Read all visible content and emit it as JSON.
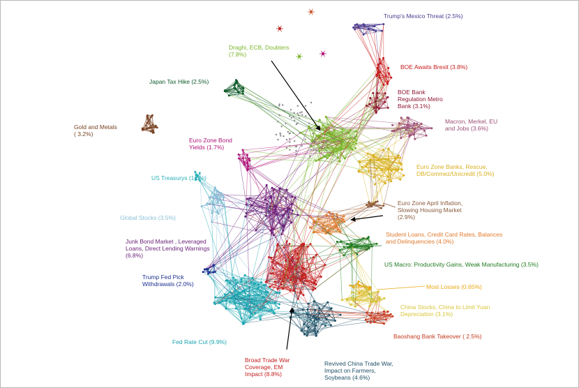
{
  "clusters": [
    {
      "id": "trump-mexico",
      "label": "Trump's Mexico Threat  (2.5%)",
      "color": "#4b3b8f"
    },
    {
      "id": "boe-brexit",
      "label": "BOE Awaits Brexit  (3.8%)",
      "color": "#c91b1b"
    },
    {
      "id": "boe-metro",
      "label": "BOE Bank\nRegulation Metro\nBank  (3.1%)",
      "color": "#8f1834"
    },
    {
      "id": "macron",
      "label": "Macron, Merkel, EU\nand Jobs  (3.6%)",
      "color": "#9b4f74"
    },
    {
      "id": "ez-banks",
      "label": "Euro Zone Banks, Rescue,\nDB/Commez/Unicredit  (5.0%)",
      "color": "#d9b01d"
    },
    {
      "id": "ez-inflation",
      "label": "Euro Zone April Inflation,\nSlowing Housing Market\n(2.9%)",
      "color": "#8a5a3c"
    },
    {
      "id": "student-loans",
      "label": "Student Loans, Credit Card Rates, Balances\nand Delinquencies  (4.0%)",
      "color": "#e07a2c"
    },
    {
      "id": "us-macro",
      "label": "US Macro: Productivity Gains, Weak Manufacturing  (3.5%)",
      "color": "#1f7a1f"
    },
    {
      "id": "most-losses",
      "label": "Most Losses  (0.65%)",
      "color": "#e8a716"
    },
    {
      "id": "china-stocks",
      "label": "China Stocks, China to Limit Yuan\nDepreciation  (3.1%)",
      "color": "#d8c63a"
    },
    {
      "id": "baoshang",
      "label": "Baoshang Bank Takeover  ( 2.5%)",
      "color": "#c4381c"
    },
    {
      "id": "revived-china",
      "label": "Revived China Trade War,\nImpact on Farmers,\nSoybeans  (4.6%)",
      "color": "#1d4f66"
    },
    {
      "id": "broad-trade",
      "label": "Broad Trade  War\nCoverage, EM\nImpact  (8.8%)",
      "color": "#c42020"
    },
    {
      "id": "fed-cut",
      "label": "Fed Rate Cut  (9.9%)",
      "color": "#1aa6b0"
    },
    {
      "id": "trump-fed",
      "label": "Trump Fed Pick\nWithdrawals  (2.0%)",
      "color": "#1b2f8f"
    },
    {
      "id": "junk-bond",
      "label": "Junk Bond Market , Leveraged\nLoans, Direct Lending Warnings\n(6.8%)",
      "color": "#6a1f78"
    },
    {
      "id": "global-stocks",
      "label": "Global Stocks  (3.5%)",
      "color": "#8cc0d8"
    },
    {
      "id": "us-treasurys",
      "label": "US Treasurys  (1.6%)",
      "color": "#2bb0b8"
    },
    {
      "id": "ez-bond",
      "label": "Euro Zone Bond\nYields  (1.7%)",
      "color": "#b0147a"
    },
    {
      "id": "gold",
      "label": "Gold and Metals\n( 3.2%)",
      "color": "#7a4424"
    },
    {
      "id": "japan-tax",
      "label": "Japan Tax Hike  (2.5%)",
      "color": "#0e5a2a"
    },
    {
      "id": "draghi",
      "label": "Draghi, ECB, Doubters\n(7.8%)",
      "color": "#7ab52a"
    }
  ]
}
